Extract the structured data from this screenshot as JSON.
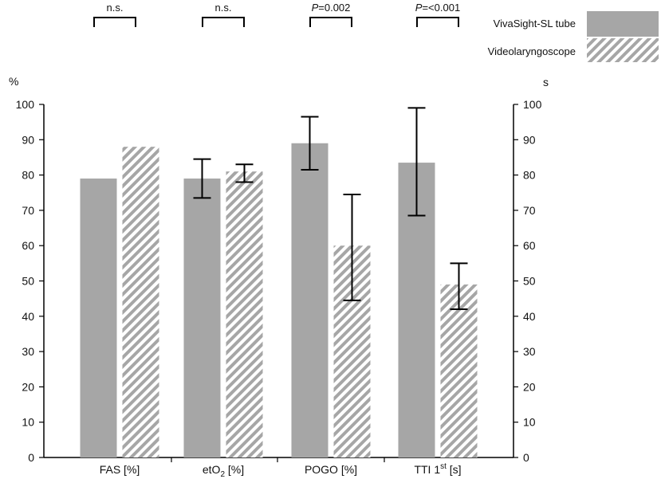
{
  "chart_data": {
    "type": "bar",
    "categories": [
      "FAS [%]",
      "etO2 [%]",
      "POGO [%]",
      "TTI 1st [s]"
    ],
    "category_labels": [
      {
        "base": "FAS [%]"
      },
      {
        "base": "etO",
        "sub": "2",
        "tail": " [%]"
      },
      {
        "base": "POGO [%]"
      },
      {
        "base": "TTI 1",
        "sup": "st",
        "tail": " [s]"
      }
    ],
    "series": [
      {
        "name": "VivaSight-SL tube",
        "color": "#a6a6a6",
        "pattern": "solid",
        "values": [
          79,
          79,
          89,
          83.5
        ],
        "error_low": [
          null,
          73.5,
          81.5,
          68.5
        ],
        "error_high": [
          null,
          84.5,
          96.5,
          99
        ]
      },
      {
        "name": "Videolaryngoscope",
        "color": "#a6a6a6",
        "pattern": "hatched",
        "values": [
          88,
          81,
          60,
          49
        ],
        "error_low": [
          null,
          78,
          44.5,
          42
        ],
        "error_high": [
          null,
          83,
          74.5,
          55
        ]
      }
    ],
    "significance": [
      {
        "label": "n.s."
      },
      {
        "label": "n.s."
      },
      {
        "p": "P",
        "rest": "=0.002"
      },
      {
        "p": "P",
        "rest": "=<0.001"
      }
    ],
    "ylabel_left": "%",
    "ylabel_right": "s",
    "ylim": [
      0,
      100
    ],
    "yticks": [
      0,
      10,
      20,
      30,
      40,
      50,
      60,
      70,
      80,
      90,
      100
    ],
    "legend_position": "top-right"
  }
}
